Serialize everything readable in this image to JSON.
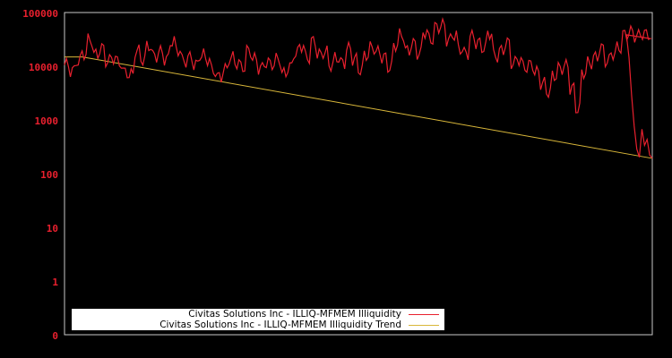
{
  "chart_data": {
    "type": "line",
    "title": "",
    "xlabel": "",
    "ylabel": "",
    "yscale": "log",
    "y_tick_labels": [
      "100000",
      "10000",
      "1000",
      "100",
      "10",
      "1",
      "0"
    ],
    "ylim": [
      0.1,
      100000
    ],
    "grid": false,
    "legend_position": "lower left",
    "plot_background": "#000000",
    "series": [
      {
        "name": "Civitas Solutions Inc - ILLIQ-MFMEM Illiquidity",
        "color": "#e8202e",
        "x": [
          0,
          1,
          2,
          3,
          4,
          5,
          6,
          7,
          8,
          9,
          10,
          11,
          12,
          13,
          14,
          15,
          16,
          17,
          18,
          19,
          20,
          21,
          22,
          23,
          24,
          25,
          26,
          27,
          28,
          29,
          30,
          31,
          32,
          33,
          34,
          35,
          36,
          37,
          38,
          39,
          40,
          41,
          42,
          43,
          44,
          45,
          46,
          47,
          48,
          49,
          50,
          51,
          52,
          53,
          54,
          55,
          56,
          57,
          58,
          59,
          60,
          61,
          62,
          63,
          64,
          65,
          66,
          67,
          68,
          69,
          70,
          71,
          72,
          73,
          74,
          75,
          76,
          77,
          78,
          79,
          80,
          81,
          82,
          83,
          84,
          85,
          86,
          87,
          88,
          89,
          90,
          91,
          92,
          93,
          94,
          95,
          96,
          97,
          98,
          99,
          100
        ],
        "values": [
          11000,
          8500,
          13000,
          18000,
          32000,
          17000,
          22000,
          13000,
          15000,
          12000,
          8000,
          7200,
          20000,
          14000,
          25000,
          16000,
          19000,
          14000,
          30000,
          21000,
          13000,
          15000,
          11000,
          17000,
          14000,
          8500,
          6500,
          9000,
          15000,
          12000,
          10000,
          20000,
          14000,
          9500,
          12000,
          11500,
          14000,
          7500,
          10000,
          18000,
          25000,
          15000,
          30000,
          17000,
          19000,
          11000,
          15000,
          12000,
          22000,
          14000,
          9000,
          17000,
          23000,
          19000,
          15000,
          10000,
          26000,
          40000,
          20000,
          27000,
          18000,
          45000,
          33000,
          55000,
          60000,
          32000,
          40000,
          22000,
          18000,
          37000,
          28000,
          23000,
          43000,
          16000,
          20000,
          28000,
          12000,
          14000,
          10000,
          11000,
          8000,
          5000,
          3500,
          7000,
          9500,
          10500,
          4000,
          1700,
          8000,
          12000,
          15000,
          22000,
          13000,
          18000,
          23000,
          40000,
          45000,
          38000,
          42000,
          40000,
          2200
        ]
      },
      {
        "name": "Civitas Solutions Inc - ILLIQ-MFMEM Illiquidity Trend",
        "color": "#d9b73a",
        "x": [
          0,
          3,
          100
        ],
        "values": [
          15500,
          15500,
          200
        ]
      }
    ],
    "tail_values_note_points": [
      {
        "x": 97.5,
        "values": [
          40000,
          15000,
          3000,
          800,
          300,
          210,
          700,
          350,
          450,
          230,
          200
        ]
      }
    ]
  },
  "legend": {
    "items": [
      {
        "label": "Civitas Solutions Inc - ILLIQ-MFMEM Illiquidity",
        "color": "#e8202e"
      },
      {
        "label": "Civitas Solutions Inc - ILLIQ-MFMEM Illiquidity Trend",
        "color": "#d9b73a"
      }
    ]
  }
}
